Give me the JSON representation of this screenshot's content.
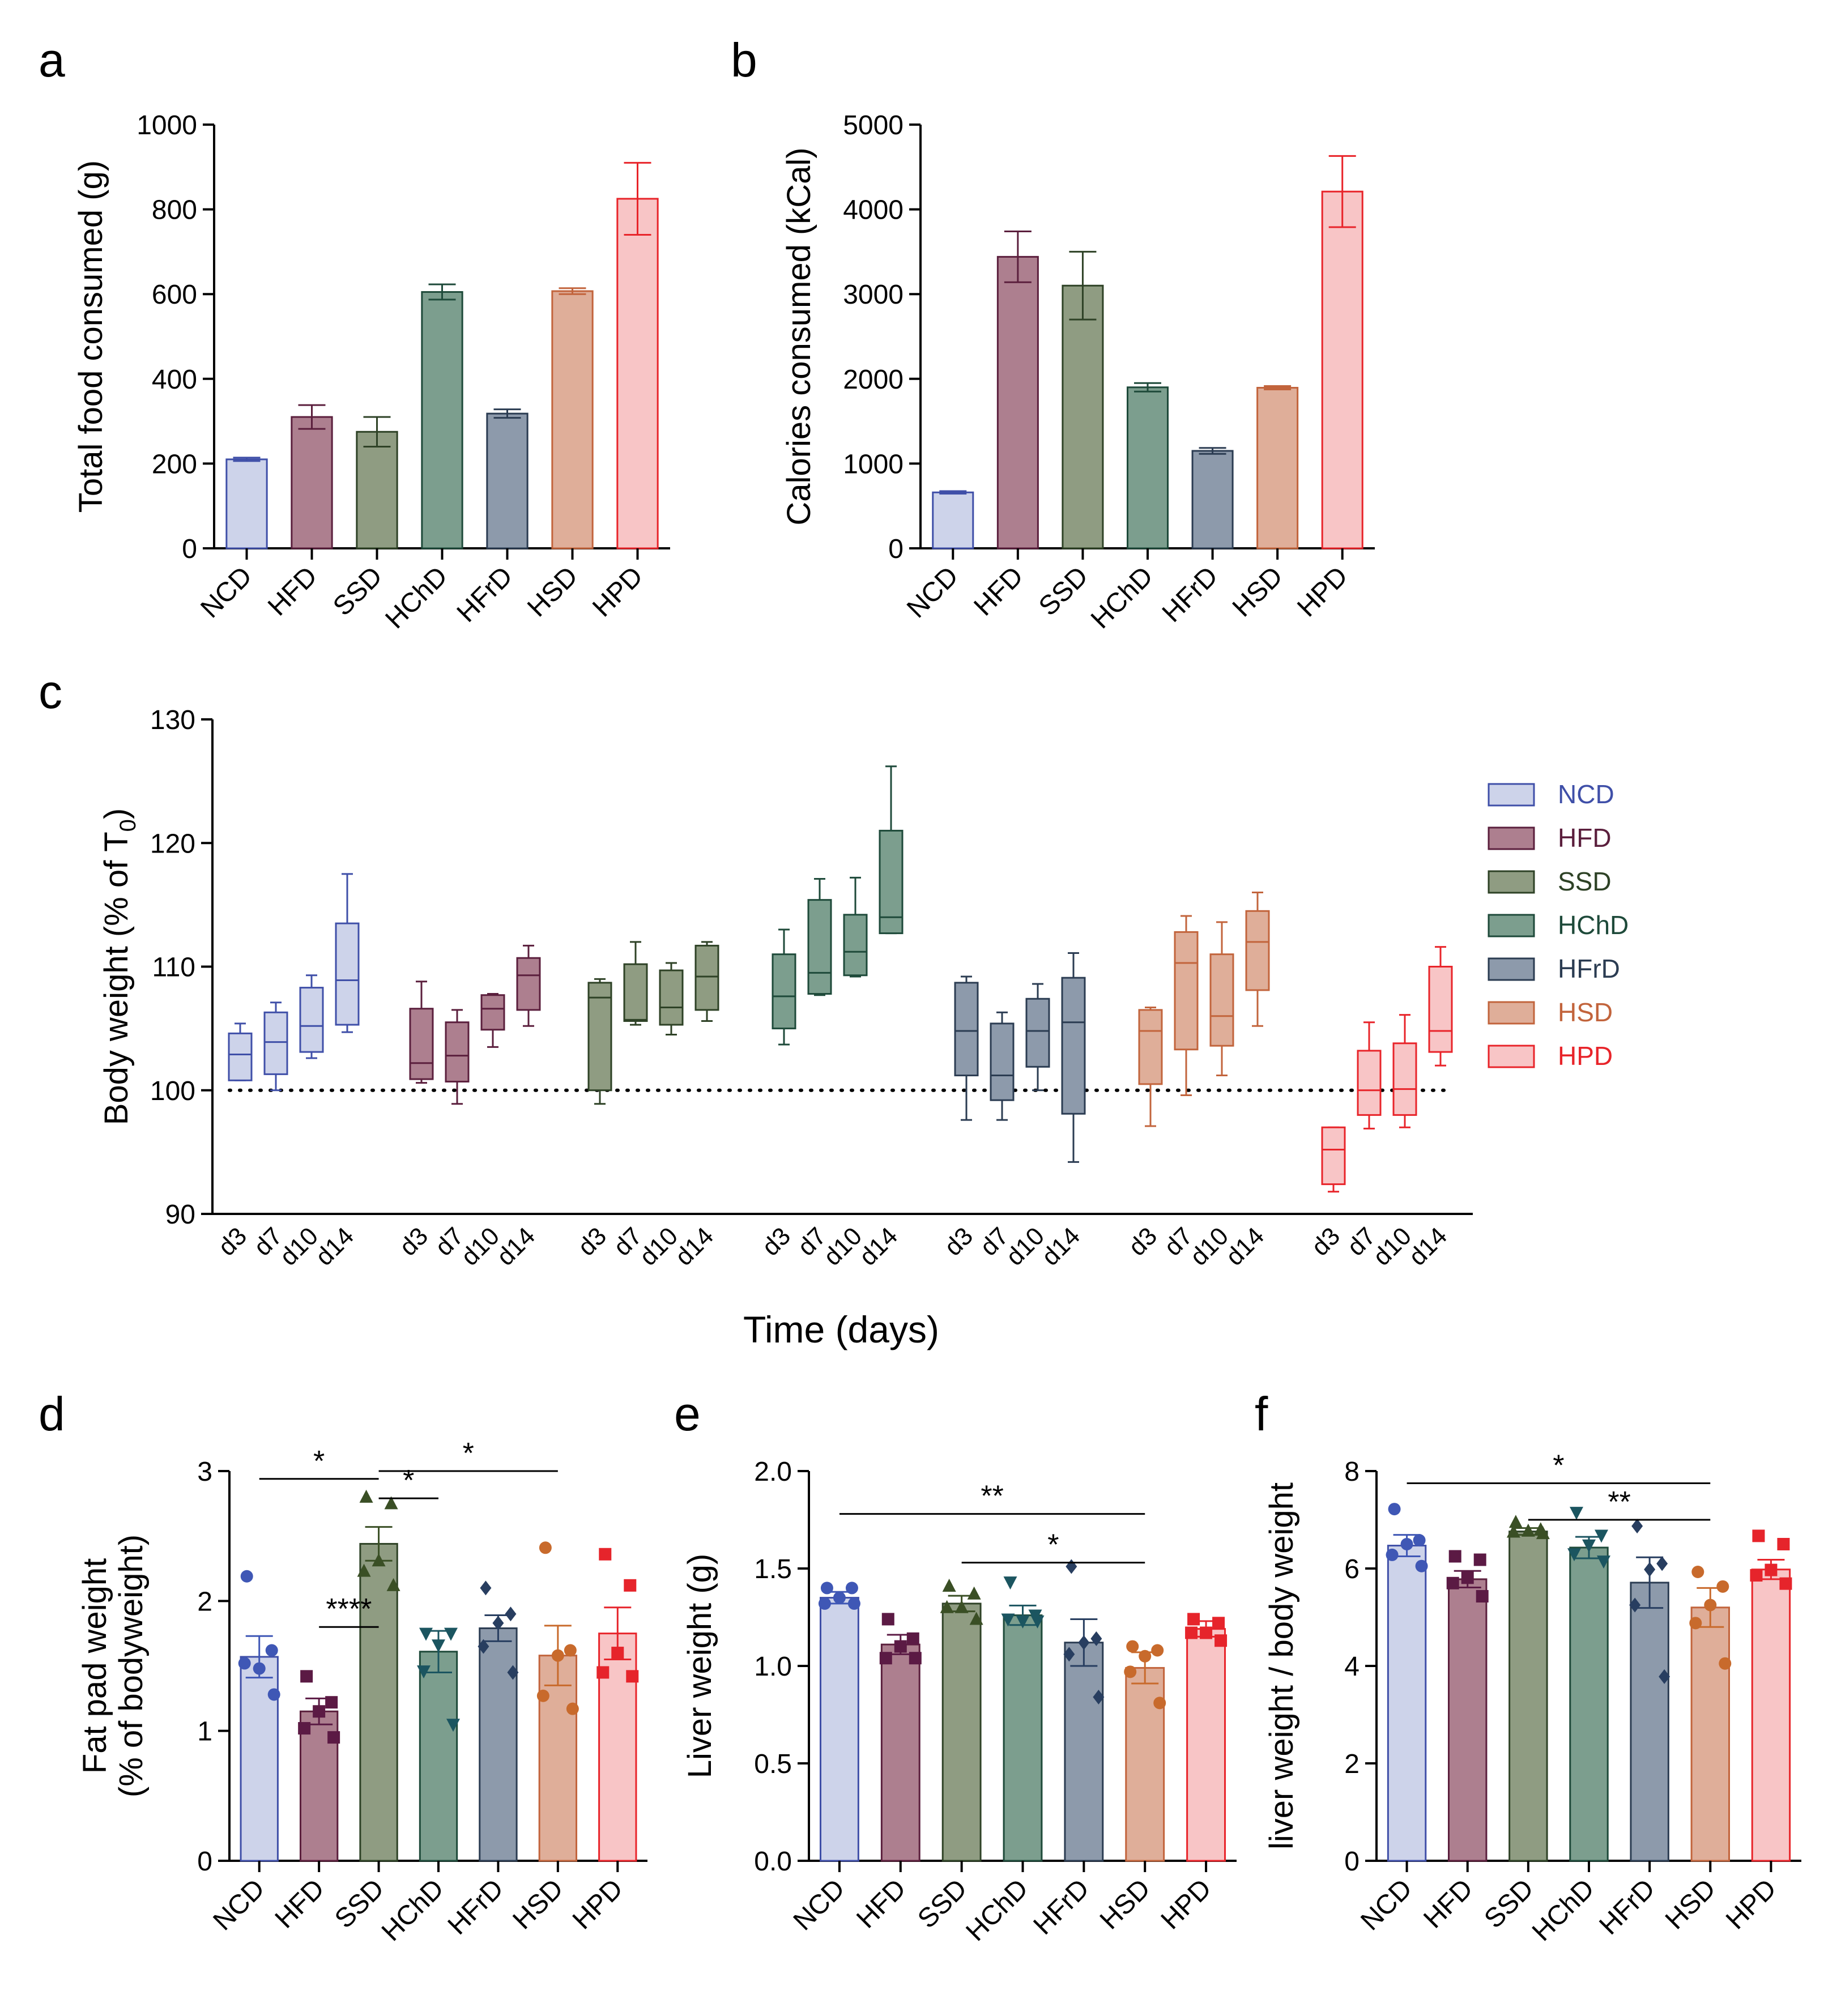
{
  "colors": {
    "NCD": {
      "fill": "#cdd3ea",
      "stroke": "#3f4fa8",
      "dot": "#3f57b5"
    },
    "HFD": {
      "fill": "#ad7f8f",
      "stroke": "#5b1f3d",
      "dot": "#5b1a44"
    },
    "SSD": {
      "fill": "#8f9c82",
      "stroke": "#2e4226",
      "dot": "#3a4f25"
    },
    "HChD": {
      "fill": "#7c9e8e",
      "stroke": "#1e4a3a",
      "dot": "#1b5560"
    },
    "HFrD": {
      "fill": "#8d9aab",
      "stroke": "#2b3c52",
      "dot": "#283e60"
    },
    "HSD": {
      "fill": "#dfae99",
      "stroke": "#c2643c",
      "dot": "#c86a2c"
    },
    "HPD": {
      "fill": "#f8c5c6",
      "stroke": "#e8242a",
      "dot": "#e6242b"
    }
  },
  "chart_data": [
    {
      "panel": "a",
      "type": "bar",
      "ylabel": "Total food consumed (g)",
      "categories": [
        "NCD",
        "HFD",
        "SSD",
        "HChD",
        "HFrD",
        "HSD",
        "HPD"
      ],
      "values": [
        210,
        310,
        275,
        605,
        318,
        607,
        825
      ],
      "errors": [
        4,
        28,
        35,
        18,
        10,
        7,
        85
      ],
      "ylim": [
        0,
        1000
      ],
      "yticks": [
        "0",
        "200",
        "400",
        "600",
        "800",
        "1000"
      ]
    },
    {
      "panel": "b",
      "type": "bar",
      "ylabel": "Calories consumed (kCal)",
      "categories": [
        "NCD",
        "HFD",
        "SSD",
        "HChD",
        "HFrD",
        "HSD",
        "HPD"
      ],
      "values": [
        660,
        3440,
        3100,
        1900,
        1150,
        1895,
        4210
      ],
      "errors": [
        15,
        300,
        400,
        50,
        35,
        20,
        420
      ],
      "ylim": [
        0,
        5000
      ],
      "yticks": [
        "0",
        "1000",
        "2000",
        "3000",
        "4000",
        "5000"
      ]
    },
    {
      "panel": "c",
      "type": "box",
      "ylabel": "Body weight (% of T",
      "ylabel_sub": "0",
      "ylabel_end": ")",
      "xlabel": "Time (days)",
      "ylim": [
        90,
        130
      ],
      "yticks": [
        "90",
        "100",
        "110",
        "120",
        "130"
      ],
      "reference_line": 100,
      "days": [
        "d3",
        "d7",
        "d10",
        "d14"
      ],
      "legend": [
        "NCD",
        "HFD",
        "SSD",
        "HChD",
        "HFrD",
        "HSD",
        "HPD"
      ],
      "groups": [
        {
          "name": "NCD",
          "boxes": [
            {
              "min": 100.8,
              "q1": 100.8,
              "median": 102.9,
              "q3": 104.6,
              "max": 105.4
            },
            {
              "min": 100.0,
              "q1": 101.3,
              "median": 103.9,
              "q3": 106.3,
              "max": 107.1
            },
            {
              "min": 102.6,
              "q1": 103.1,
              "median": 105.2,
              "q3": 108.3,
              "max": 109.3
            },
            {
              "min": 104.7,
              "q1": 105.3,
              "median": 108.9,
              "q3": 113.5,
              "max": 117.5
            }
          ]
        },
        {
          "name": "HFD",
          "boxes": [
            {
              "min": 100.6,
              "q1": 100.9,
              "median": 102.2,
              "q3": 106.6,
              "max": 108.8
            },
            {
              "min": 98.9,
              "q1": 100.7,
              "median": 102.8,
              "q3": 105.5,
              "max": 106.5
            },
            {
              "min": 103.5,
              "q1": 104.9,
              "median": 106.6,
              "q3": 107.7,
              "max": 107.8
            },
            {
              "min": 105.2,
              "q1": 106.5,
              "median": 109.3,
              "q3": 110.7,
              "max": 111.7
            }
          ]
        },
        {
          "name": "SSD",
          "boxes": [
            {
              "min": 98.9,
              "q1": 100.0,
              "median": 107.5,
              "q3": 108.7,
              "max": 109.0
            },
            {
              "min": 105.3,
              "q1": 105.6,
              "median": 105.7,
              "q3": 110.2,
              "max": 112.0
            },
            {
              "min": 104.5,
              "q1": 105.3,
              "median": 106.7,
              "q3": 109.7,
              "max": 110.3
            },
            {
              "min": 105.6,
              "q1": 106.5,
              "median": 109.2,
              "q3": 111.7,
              "max": 112.0
            }
          ]
        },
        {
          "name": "HChD",
          "boxes": [
            {
              "min": 103.7,
              "q1": 105.0,
              "median": 107.6,
              "q3": 111.0,
              "max": 113.0
            },
            {
              "min": 107.7,
              "q1": 107.8,
              "median": 109.5,
              "q3": 115.4,
              "max": 117.1
            },
            {
              "min": 109.2,
              "q1": 109.3,
              "median": 111.2,
              "q3": 114.2,
              "max": 117.2
            },
            {
              "min": 112.7,
              "q1": 112.7,
              "median": 114.0,
              "q3": 121.0,
              "max": 126.2
            }
          ]
        },
        {
          "name": "HFrD",
          "boxes": [
            {
              "min": 97.6,
              "q1": 101.2,
              "median": 104.8,
              "q3": 108.7,
              "max": 109.2
            },
            {
              "min": 97.6,
              "q1": 99.2,
              "median": 101.2,
              "q3": 105.4,
              "max": 106.3
            },
            {
              "min": 100.0,
              "q1": 101.9,
              "median": 104.8,
              "q3": 107.4,
              "max": 108.6
            },
            {
              "min": 94.2,
              "q1": 98.1,
              "median": 105.5,
              "q3": 109.1,
              "max": 111.1
            }
          ]
        },
        {
          "name": "HSD",
          "boxes": [
            {
              "min": 97.1,
              "q1": 100.5,
              "median": 104.8,
              "q3": 106.5,
              "max": 106.7
            },
            {
              "min": 99.6,
              "q1": 103.3,
              "median": 110.3,
              "q3": 112.8,
              "max": 114.1
            },
            {
              "min": 101.2,
              "q1": 103.6,
              "median": 106.0,
              "q3": 111.0,
              "max": 113.6
            },
            {
              "min": 105.2,
              "q1": 108.1,
              "median": 112.0,
              "q3": 114.5,
              "max": 116.0
            }
          ]
        },
        {
          "name": "HPD",
          "boxes": [
            {
              "min": 91.8,
              "q1": 92.4,
              "median": 95.2,
              "q3": 97.0,
              "max": 97.0
            },
            {
              "min": 96.9,
              "q1": 98.0,
              "median": 100.0,
              "q3": 103.2,
              "max": 105.5
            },
            {
              "min": 97.0,
              "q1": 98.0,
              "median": 100.1,
              "q3": 103.8,
              "max": 106.1
            },
            {
              "min": 102.0,
              "q1": 103.1,
              "median": 104.8,
              "q3": 110.0,
              "max": 111.6
            }
          ]
        }
      ]
    },
    {
      "panel": "d",
      "type": "bar",
      "ylabel": "Fat pad weight",
      "ylabel2": "(% of bodyweight)",
      "categories": [
        "NCD",
        "HFD",
        "SSD",
        "HChD",
        "HFrD",
        "HSD",
        "HPD"
      ],
      "values": [
        1.57,
        1.15,
        2.44,
        1.61,
        1.79,
        1.58,
        1.75
      ],
      "errors": [
        0.16,
        0.1,
        0.13,
        0.16,
        0.1,
        0.23,
        0.2
      ],
      "points": [
        [
          2.19,
          1.62,
          1.48,
          1.52,
          1.28
        ],
        [
          1.42,
          1.22,
          1.15,
          1.02,
          0.95
        ],
        [
          2.8,
          2.75,
          2.31,
          2.23,
          2.12
        ],
        [
          1.75,
          1.75,
          1.66,
          1.46,
          1.05
        ],
        [
          2.1,
          1.9,
          1.83,
          1.65,
          1.45
        ],
        [
          2.41,
          1.62,
          1.58,
          1.27,
          1.17
        ],
        [
          2.36,
          2.12,
          1.6,
          1.45,
          1.42
        ]
      ],
      "ylim": [
        0,
        3
      ],
      "yticks": [
        "0",
        "1",
        "2",
        "3"
      ],
      "significance": [
        {
          "from": "NCD",
          "to": "SSD",
          "label": "*",
          "y": 2.94
        },
        {
          "from": "SSD",
          "to": "HSD",
          "label": "*",
          "y": 3.0
        },
        {
          "from": "SSD",
          "to": "HChD",
          "label": "*",
          "y": 2.79
        },
        {
          "from": "HFD",
          "to": "SSD",
          "label": "****",
          "y": 1.8
        }
      ]
    },
    {
      "panel": "e",
      "type": "bar",
      "ylabel": "Liver weight (g)",
      "categories": [
        "NCD",
        "HFD",
        "SSD",
        "HChD",
        "HFrD",
        "HSD",
        "HPD"
      ],
      "values": [
        1.35,
        1.11,
        1.32,
        1.26,
        1.12,
        0.99,
        1.19
      ],
      "errors": [
        0.03,
        0.05,
        0.04,
        0.05,
        0.12,
        0.08,
        0.04
      ],
      "points": [
        [
          1.4,
          1.4,
          1.35,
          1.32,
          1.32
        ],
        [
          1.24,
          1.14,
          1.1,
          1.04,
          1.04
        ],
        [
          1.41,
          1.37,
          1.3,
          1.3,
          1.24
        ],
        [
          1.43,
          1.26,
          1.23,
          1.24,
          1.23
        ],
        [
          1.51,
          1.14,
          1.12,
          1.06,
          0.84
        ],
        [
          1.1,
          1.08,
          1.05,
          0.97,
          0.81
        ],
        [
          1.24,
          1.22,
          1.17,
          1.17,
          1.13
        ]
      ],
      "ylim": [
        0,
        2
      ],
      "yticks": [
        "0.0",
        "0.5",
        "1.0",
        "1.5",
        "2.0"
      ],
      "significance": [
        {
          "from": "NCD",
          "to": "HSD",
          "label": "**",
          "y": 1.78
        },
        {
          "from": "SSD",
          "to": "HSD",
          "label": "*",
          "y": 1.53
        }
      ]
    },
    {
      "panel": "f",
      "type": "bar",
      "ylabel": "liver weight / body weight",
      "categories": [
        "NCD",
        "HFD",
        "SSD",
        "HChD",
        "HFrD",
        "HSD",
        "HPD"
      ],
      "values": [
        6.47,
        5.78,
        6.76,
        6.43,
        5.71,
        5.2,
        5.98
      ],
      "errors": [
        0.22,
        0.17,
        0.07,
        0.22,
        0.52,
        0.4,
        0.2
      ],
      "points": [
        [
          7.22,
          6.58,
          6.5,
          6.28,
          6.05
        ],
        [
          6.25,
          6.18,
          5.81,
          5.7,
          5.43
        ],
        [
          6.95,
          6.8,
          6.77,
          6.75,
          6.72
        ],
        [
          7.15,
          6.68,
          6.48,
          6.3,
          6.15
        ],
        [
          6.87,
          6.1,
          5.98,
          5.25,
          3.78
        ],
        [
          5.93,
          5.63,
          5.25,
          4.88,
          4.05
        ],
        [
          6.67,
          6.5,
          5.97,
          5.86,
          5.69
        ]
      ],
      "ylim": [
        0,
        8
      ],
      "yticks": [
        "0",
        "2",
        "4",
        "6",
        "8"
      ],
      "significance": [
        {
          "from": "NCD",
          "to": "HSD",
          "label": "*",
          "y": 7.75
        },
        {
          "from": "SSD",
          "to": "HSD",
          "label": "**",
          "y": 7.0
        }
      ]
    }
  ]
}
